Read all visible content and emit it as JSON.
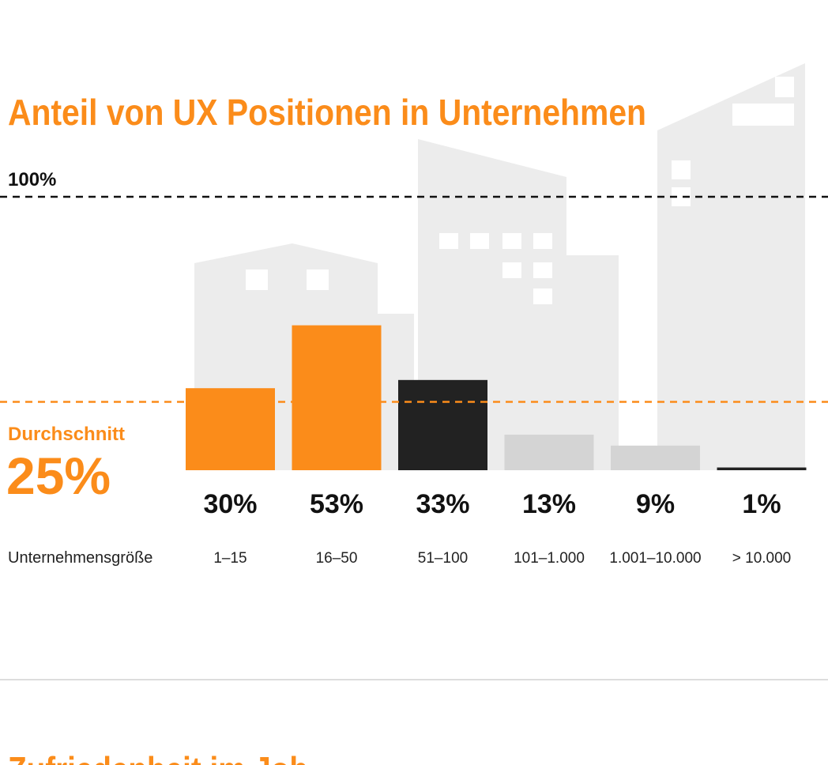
{
  "chart_data": {
    "type": "bar",
    "title": "Anteil von UX Positionen in Unternehmen",
    "x_label": "Unternehmensgröße",
    "categories": [
      "1–15",
      "16–50",
      "51–100",
      "101–1.000",
      "1.001–10.000",
      "> 10.000"
    ],
    "values": [
      30,
      53,
      33,
      13,
      9,
      1
    ],
    "value_labels": [
      "30%",
      "53%",
      "33%",
      "13%",
      "9%",
      "1%"
    ],
    "colors": [
      "#fb8c1a",
      "#fb8c1a",
      "#222222",
      "#d4d4d4",
      "#d4d4d4",
      "#222222"
    ],
    "ylim": [
      0,
      100
    ],
    "yticks": [
      {
        "value": 100,
        "label": "100%"
      }
    ],
    "average": {
      "name": "Durchschnitt",
      "value": 25,
      "value_label": "25%",
      "color": "#fb8c1a"
    }
  },
  "next_section": {
    "title": "Zufriedenheit im Job"
  }
}
